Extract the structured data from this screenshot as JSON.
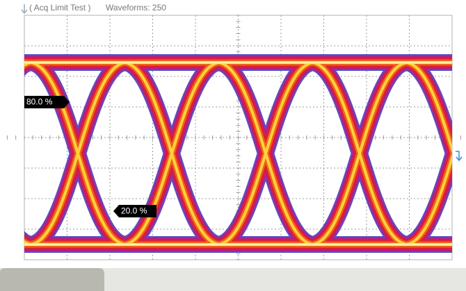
{
  "header": {
    "status": "( Acq Limit Test )",
    "waveforms": "Waveforms: 250"
  },
  "markers": [
    {
      "label": "80.0 %"
    },
    {
      "label": "20.0 %"
    }
  ]
}
